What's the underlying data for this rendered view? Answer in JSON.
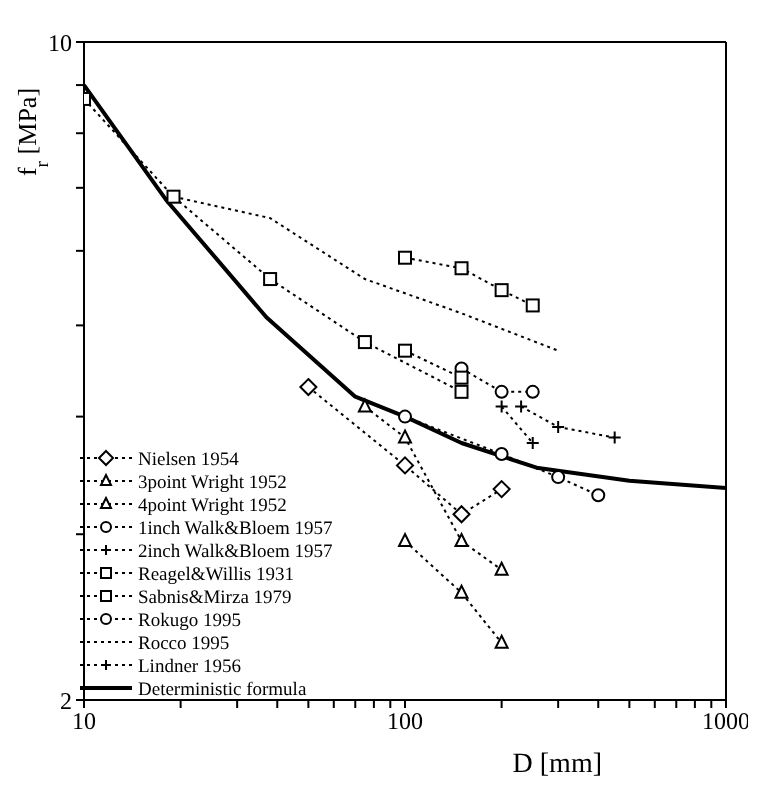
{
  "chart_data": {
    "type": "line",
    "xlabel": "D [mm]",
    "ylabel": "f$_{r}$ [MPa]",
    "log": "xy",
    "grid": false,
    "legend": "bottom left",
    "line_style": "dotted",
    "xlim": [
      10,
      1000
    ],
    "xticks": [
      10,
      {
        "value": 20,
        "label": null
      },
      {
        "value": 30,
        "label": null
      },
      {
        "value": 40,
        "label": null
      },
      {
        "value": 50,
        "label": null
      },
      {
        "value": 60,
        "label": null
      },
      {
        "value": 70,
        "label": null
      },
      {
        "value": 80,
        "label": null
      },
      {
        "value": 90,
        "label": null
      },
      100,
      {
        "value": 200,
        "label": null
      },
      {
        "value": 300,
        "label": null
      },
      {
        "value": 400,
        "label": null
      },
      {
        "value": 500,
        "label": null
      },
      {
        "value": 600,
        "label": null
      },
      {
        "value": 700,
        "label": null
      },
      {
        "value": 800,
        "label": null
      },
      {
        "value": 900,
        "label": null
      },
      1000
    ],
    "ylim": [
      2,
      10
    ],
    "yticks": [
      2,
      {
        "value": 3,
        "label": null
      },
      {
        "value": 4,
        "label": null
      },
      {
        "value": 5,
        "label": null
      },
      {
        "value": 6,
        "label": null
      },
      {
        "value": 7,
        "label": null
      },
      {
        "value": 8,
        "label": null
      },
      {
        "value": 9,
        "label": null
      },
      10
    ],
    "series": [
      {
        "name": "Nielsen 1954",
        "color": "#000000",
        "marker": "diamond",
        "x": [
          50,
          100,
          150,
          200
        ],
        "values": [
          4.3,
          3.55,
          3.15,
          3.35
        ]
      },
      {
        "name": "3point Wright 1952",
        "color": "#000000",
        "marker": "triangle",
        "x": [
          75,
          100,
          150,
          200
        ],
        "values": [
          4.1,
          3.8,
          2.95,
          2.75
        ]
      },
      {
        "name": "4point Wright 1952",
        "color": "#000000",
        "marker": "triangle",
        "x": [
          100,
          150,
          200
        ],
        "values": [
          2.95,
          2.6,
          2.3
        ]
      },
      {
        "name": "1inch Walk&Bloem 1957",
        "color": "#000000",
        "marker": "circle",
        "x": [
          150,
          200,
          250
        ],
        "values": [
          4.5,
          4.25,
          4.25
        ]
      },
      {
        "name": "2inch Walk&Bloem 1957",
        "color": "#000000",
        "marker": "cross",
        "x": [
          200,
          250
        ],
        "values": [
          4.1,
          3.75
        ]
      },
      {
        "name": "Reagel&Willis 1931",
        "color": "#000000",
        "marker": "square",
        "x": [
          100,
          150,
          200,
          250
        ],
        "values": [
          5.9,
          5.75,
          5.45,
          5.25
        ]
      },
      {
        "color": "#000000",
        "marker": "square",
        "x": [
          100,
          150
        ],
        "values": [
          4.7,
          4.4
        ]
      },
      {
        "name": "Sabnis&Mirza 1979",
        "color": "#000000",
        "marker": "square",
        "x": [
          10,
          19,
          38,
          75,
          150
        ],
        "values": [
          8.7,
          6.85,
          5.6,
          4.8,
          4.25
        ]
      },
      {
        "name": "Rokugo 1995",
        "color": "#000000",
        "marker": "circle",
        "x": [
          100,
          200,
          300,
          400
        ],
        "values": [
          4.0,
          3.65,
          3.45,
          3.3
        ]
      },
      {
        "name": "Rocco 1995",
        "color": "#000000",
        "marker": "none",
        "x": [
          19,
          38,
          75,
          150,
          300
        ],
        "values": [
          6.85,
          6.5,
          5.6,
          5.15,
          4.7
        ]
      },
      {
        "name": "Lindner 1956",
        "color": "#000000",
        "marker": "cross",
        "x": [
          230,
          300,
          450
        ],
        "values": [
          4.1,
          3.9,
          3.8
        ]
      },
      {
        "name": "Deterministic formula",
        "color": "#000000",
        "marker": "none",
        "line_style": "solid",
        "x": [
          10,
          18,
          37,
          70,
          100,
          150,
          257,
          500,
          1000
        ],
        "values": [
          9.0,
          6.8,
          5.1,
          4.2,
          4.0,
          3.75,
          3.53,
          3.42,
          3.36
        ]
      }
    ]
  }
}
